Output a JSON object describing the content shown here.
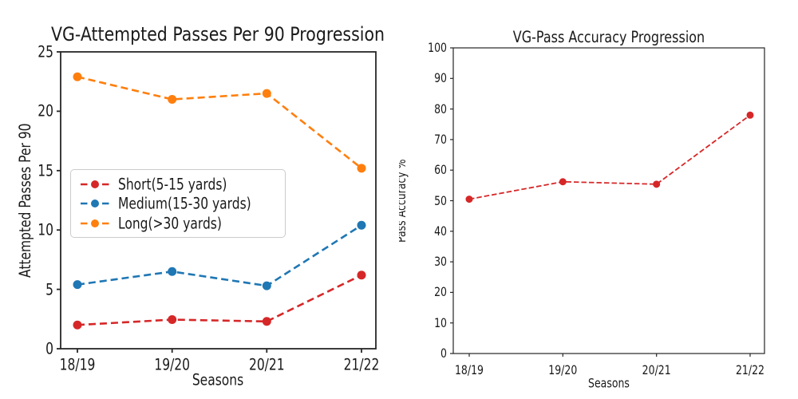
{
  "figure": {
    "background": "#ffffff",
    "text_color": "#262626",
    "axis_color": "#262626"
  },
  "chart_data": [
    {
      "type": "line",
      "title": "VG-Attempted Passes Per 90 Progression",
      "xlabel": "Seasons",
      "ylabel": "Attempted Passes Per 90",
      "categories": [
        "18/19",
        "19/20",
        "20/21",
        "21/22"
      ],
      "series": [
        {
          "name": "Short(5-15 yards)",
          "color": "#d62728",
          "linestyle": "dashed",
          "marker": "circle",
          "values": [
            2.0,
            2.45,
            2.3,
            6.2
          ]
        },
        {
          "name": "Medium(15-30 yards)",
          "color": "#1f77b4",
          "linestyle": "dashed",
          "marker": "circle",
          "values": [
            5.4,
            6.5,
            5.3,
            10.4
          ]
        },
        {
          "name": "Long(>30 yards)",
          "color": "#ff7f0e",
          "linestyle": "dashed",
          "marker": "circle",
          "values": [
            22.9,
            21.0,
            21.5,
            15.2
          ]
        }
      ],
      "ylim": [
        0,
        25
      ],
      "yticks": [
        0,
        5,
        10,
        15,
        20,
        25
      ],
      "grid": false,
      "legend": {
        "visible": true,
        "position": "center-left"
      }
    },
    {
      "type": "line",
      "title": "VG-Pass Accuracy Progression",
      "xlabel": "Seasons",
      "ylabel": "Pass Accuracy %",
      "categories": [
        "18/19",
        "19/20",
        "20/21",
        "21/22"
      ],
      "series": [
        {
          "name": "Pass Accuracy %",
          "color": "#d62728",
          "linestyle": "dashed",
          "marker": "circle",
          "values": [
            50.5,
            56.2,
            55.4,
            78.0
          ]
        }
      ],
      "ylim": [
        0,
        100
      ],
      "yticks": [
        0,
        10,
        20,
        30,
        40,
        50,
        60,
        70,
        80,
        90,
        100
      ],
      "grid": false,
      "legend": {
        "visible": false
      }
    }
  ]
}
